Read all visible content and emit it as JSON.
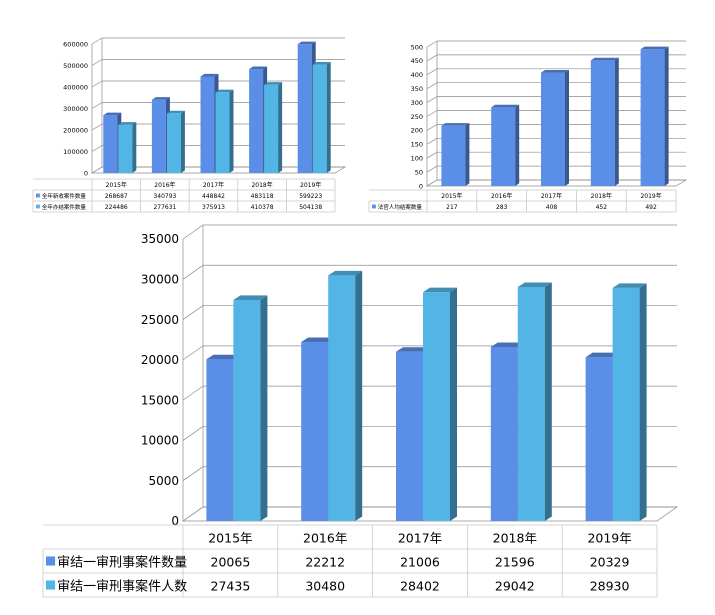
{
  "colors": {
    "series_dark": "#5b8ee6",
    "series_light": "#53b5e6",
    "grid": "#8c8c8c",
    "table_border": "#c9c9c9"
  },
  "chart_data": [
    {
      "type": "bar",
      "title": "",
      "xlabel": "",
      "ylabel": "",
      "categories": [
        "2015年",
        "2016年",
        "2017年",
        "2018年",
        "2019年"
      ],
      "series": [
        {
          "name": "全年新收案件数量",
          "values": [
            268687,
            340793,
            448842,
            483118,
            599223
          ]
        },
        {
          "name": "全年办结案件数量",
          "values": [
            224486,
            277631,
            375913,
            410378,
            504138
          ]
        }
      ],
      "ylim": [
        0,
        600000
      ],
      "yticks": [
        0,
        100000,
        200000,
        300000,
        400000,
        500000,
        600000
      ],
      "grid": true,
      "legend": "data-table"
    },
    {
      "type": "bar",
      "title": "",
      "xlabel": "",
      "ylabel": "",
      "categories": [
        "2015年",
        "2016年",
        "2017年",
        "2018年",
        "2019年"
      ],
      "series": [
        {
          "name": "法官人均结案数量",
          "values": [
            217,
            283,
            408,
            452,
            492
          ]
        }
      ],
      "ylim": [
        0,
        500
      ],
      "yticks": [
        0,
        50,
        100,
        150,
        200,
        250,
        300,
        350,
        400,
        450,
        500
      ],
      "grid": true,
      "legend": "data-table"
    },
    {
      "type": "bar",
      "title": "",
      "xlabel": "",
      "ylabel": "",
      "categories": [
        "2015年",
        "2016年",
        "2017年",
        "2018年",
        "2019年"
      ],
      "series": [
        {
          "name": "审结一审刑事案件数量",
          "values": [
            20065,
            22212,
            21006,
            21596,
            20329
          ]
        },
        {
          "name": "审结一审刑事案件人数",
          "values": [
            27435,
            30480,
            28402,
            29042,
            28930
          ]
        }
      ],
      "ylim": [
        0,
        35000
      ],
      "yticks": [
        0,
        5000,
        10000,
        15000,
        20000,
        25000,
        30000,
        35000
      ],
      "grid": true,
      "legend": "data-table"
    }
  ]
}
